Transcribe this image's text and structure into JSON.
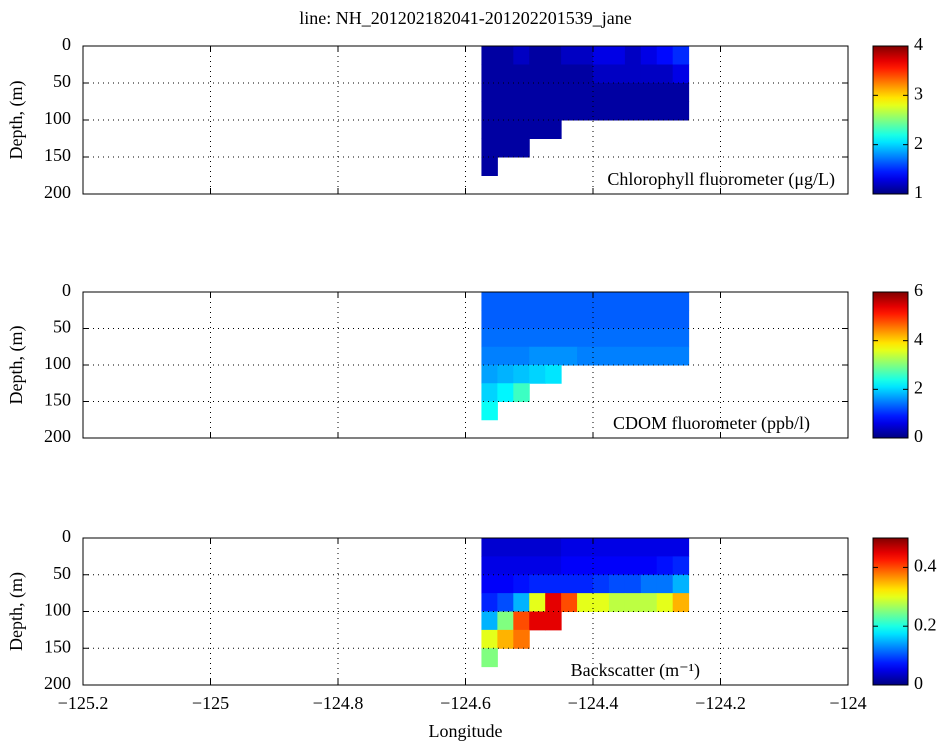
{
  "chart_data": [
    {
      "type": "heatmap",
      "title": "line: NH_201202182041-201202201539_jane",
      "ylabel": "Depth, (m)",
      "label": "Chlorophyll fluorometer (μg/L)",
      "colormap": "jet",
      "grid": true,
      "y_inverted": true,
      "xlim": [
        -125.2,
        -124
      ],
      "xticks": [
        -125.2,
        -125,
        -124.8,
        -124.6,
        -124.4,
        -124.2,
        -124
      ],
      "ylim": [
        0,
        200
      ],
      "yticks": [
        0,
        50,
        100,
        150,
        200
      ],
      "clim": [
        1,
        4
      ],
      "cticks": [
        1,
        2,
        3,
        4
      ],
      "x": [
        -124.5625,
        -124.5375,
        -124.5125,
        -124.4875,
        -124.4625,
        -124.4375,
        -124.4125,
        -124.3875,
        -124.3625,
        -124.3375,
        -124.3125,
        -124.2875,
        -124.2625
      ],
      "y": [
        12.5,
        37.5,
        62.5,
        87.5,
        112.5,
        137.5,
        162.5,
        187.5
      ],
      "values": [
        [
          1.1,
          1.1,
          1.2,
          1.1,
          1.1,
          1.2,
          1.2,
          1.3,
          1.3,
          1.2,
          1.3,
          1.4,
          1.5
        ],
        [
          1.1,
          1.1,
          1.1,
          1.1,
          1.1,
          1.1,
          1.1,
          1.2,
          1.2,
          1.2,
          1.2,
          1.2,
          1.3
        ],
        [
          1.1,
          1.1,
          1.1,
          1.1,
          1.1,
          1.1,
          1.1,
          1.1,
          1.1,
          1.1,
          1.1,
          1.1,
          1.1
        ],
        [
          1.1,
          1.1,
          1.1,
          1.1,
          1.1,
          1.1,
          1.1,
          1.1,
          1.1,
          1.1,
          1.1,
          1.1,
          1.1
        ],
        [
          1.1,
          1.1,
          1.1,
          1.1,
          1.1,
          null,
          null,
          null,
          null,
          null,
          null,
          null,
          null
        ],
        [
          1.1,
          1.1,
          1.1,
          null,
          null,
          null,
          null,
          null,
          null,
          null,
          null,
          null,
          null
        ],
        [
          1.1,
          null,
          null,
          null,
          null,
          null,
          null,
          null,
          null,
          null,
          null,
          null,
          null
        ],
        [
          null,
          null,
          null,
          null,
          null,
          null,
          null,
          null,
          null,
          null,
          null,
          null,
          null
        ]
      ]
    },
    {
      "type": "heatmap",
      "ylabel": "Depth, (m)",
      "label": "CDOM fluorometer (ppb/l)",
      "colormap": "jet",
      "grid": true,
      "y_inverted": true,
      "xlim": [
        -125.2,
        -124
      ],
      "xticks": [
        -125.2,
        -125,
        -124.8,
        -124.6,
        -124.4,
        -124.2,
        -124
      ],
      "ylim": [
        0,
        200
      ],
      "yticks": [
        0,
        50,
        100,
        150,
        200
      ],
      "clim": [
        0,
        6
      ],
      "cticks": [
        0,
        2,
        4,
        6
      ],
      "x": [
        -124.5625,
        -124.5375,
        -124.5125,
        -124.4875,
        -124.4625,
        -124.4375,
        -124.4125,
        -124.3875,
        -124.3625,
        -124.3375,
        -124.3125,
        -124.2875,
        -124.2625
      ],
      "y": [
        12.5,
        37.5,
        62.5,
        87.5,
        112.5,
        137.5,
        162.5,
        187.5
      ],
      "values": [
        [
          1.3,
          1.3,
          1.3,
          1.3,
          1.3,
          1.3,
          1.3,
          1.3,
          1.3,
          1.3,
          1.3,
          1.3,
          1.3
        ],
        [
          1.3,
          1.3,
          1.3,
          1.3,
          1.3,
          1.3,
          1.3,
          1.3,
          1.3,
          1.3,
          1.3,
          1.3,
          1.3
        ],
        [
          1.4,
          1.4,
          1.4,
          1.4,
          1.4,
          1.4,
          1.4,
          1.4,
          1.4,
          1.4,
          1.4,
          1.4,
          1.4
        ],
        [
          1.5,
          1.5,
          1.5,
          1.6,
          1.6,
          1.6,
          1.5,
          1.5,
          1.5,
          1.5,
          1.5,
          1.5,
          1.5
        ],
        [
          1.7,
          1.8,
          1.9,
          2.0,
          2.1,
          null,
          null,
          null,
          null,
          null,
          null,
          null,
          null
        ],
        [
          2.0,
          2.2,
          2.6,
          null,
          null,
          null,
          null,
          null,
          null,
          null,
          null,
          null,
          null
        ],
        [
          2.3,
          null,
          null,
          null,
          null,
          null,
          null,
          null,
          null,
          null,
          null,
          null,
          null
        ],
        [
          null,
          null,
          null,
          null,
          null,
          null,
          null,
          null,
          null,
          null,
          null,
          null,
          null
        ]
      ]
    },
    {
      "type": "heatmap",
      "ylabel": "Depth, (m)",
      "label": "Backscatter (m⁻¹)",
      "xlabel": "Longitude",
      "colormap": "jet",
      "grid": true,
      "y_inverted": true,
      "xlim": [
        -125.2,
        -124
      ],
      "xticks": [
        {
          "value": -125.2,
          "label": "−125.2"
        },
        {
          "value": -125,
          "label": "−125"
        },
        {
          "value": -124.8,
          "label": "−124.8"
        },
        {
          "value": -124.6,
          "label": "−124.6"
        },
        {
          "value": -124.4,
          "label": "−124.4"
        },
        {
          "value": -124.2,
          "label": "−124.2"
        },
        {
          "value": -124,
          "label": "−124"
        }
      ],
      "ylim": [
        0,
        200
      ],
      "yticks": [
        0,
        50,
        100,
        150,
        200
      ],
      "clim": [
        0,
        0.5
      ],
      "cticks": [
        0,
        0.2,
        0.4
      ],
      "x": [
        -124.5625,
        -124.5375,
        -124.5125,
        -124.4875,
        -124.4625,
        -124.4375,
        -124.4125,
        -124.3875,
        -124.3625,
        -124.3375,
        -124.3125,
        -124.2875,
        -124.2625
      ],
      "y": [
        12.5,
        37.5,
        62.5,
        87.5,
        112.5,
        137.5,
        162.5,
        187.5
      ],
      "values": [
        [
          0.04,
          0.04,
          0.04,
          0.04,
          0.04,
          0.05,
          0.05,
          0.05,
          0.05,
          0.05,
          0.05,
          0.05,
          0.05
        ],
        [
          0.05,
          0.05,
          0.05,
          0.05,
          0.05,
          0.06,
          0.06,
          0.06,
          0.06,
          0.06,
          0.06,
          0.07,
          0.08
        ],
        [
          0.06,
          0.06,
          0.07,
          0.08,
          0.08,
          0.08,
          0.08,
          0.09,
          0.1,
          0.1,
          0.12,
          0.12,
          0.15
        ],
        [
          0.08,
          0.1,
          0.15,
          0.3,
          0.45,
          0.4,
          0.3,
          0.3,
          0.28,
          0.28,
          0.28,
          0.3,
          0.35
        ],
        [
          0.15,
          0.25,
          0.4,
          0.45,
          0.45,
          null,
          null,
          null,
          null,
          null,
          null,
          null,
          null
        ],
        [
          0.3,
          0.35,
          0.38,
          null,
          null,
          null,
          null,
          null,
          null,
          null,
          null,
          null,
          null
        ],
        [
          0.25,
          null,
          null,
          null,
          null,
          null,
          null,
          null,
          null,
          null,
          null,
          null,
          null
        ],
        [
          null,
          null,
          null,
          null,
          null,
          null,
          null,
          null,
          null,
          null,
          null,
          null,
          null
        ]
      ]
    }
  ]
}
